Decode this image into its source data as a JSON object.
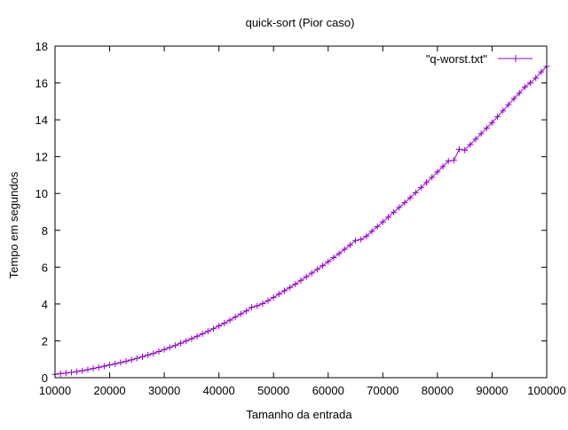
{
  "chart_data": {
    "type": "line",
    "title": "quick-sort (Pior caso)",
    "xlabel": "Tamanho da entrada",
    "ylabel": "Tempo em segundos",
    "xlim": [
      10000,
      100000
    ],
    "ylim": [
      0,
      18
    ],
    "xticks": [
      10000,
      20000,
      30000,
      40000,
      50000,
      60000,
      70000,
      80000,
      90000,
      100000
    ],
    "yticks": [
      0,
      2,
      4,
      6,
      8,
      10,
      12,
      14,
      16,
      18
    ],
    "grid": false,
    "legend_position": "top-right",
    "series": [
      {
        "name": "\"q-worst.txt\"",
        "color": "#9400d3",
        "marker": "plus",
        "x": [
          10000,
          11000,
          12000,
          13000,
          14000,
          15000,
          16000,
          17000,
          18000,
          19000,
          20000,
          21000,
          22000,
          23000,
          24000,
          25000,
          26000,
          27000,
          28000,
          29000,
          30000,
          31000,
          32000,
          33000,
          34000,
          35000,
          36000,
          37000,
          38000,
          39000,
          40000,
          41000,
          42000,
          43000,
          44000,
          45000,
          46000,
          47000,
          48000,
          49000,
          50000,
          51000,
          52000,
          53000,
          54000,
          55000,
          56000,
          57000,
          58000,
          59000,
          60000,
          61000,
          62000,
          63000,
          64000,
          65000,
          66000,
          67000,
          68000,
          69000,
          70000,
          71000,
          72000,
          73000,
          74000,
          75000,
          76000,
          77000,
          78000,
          79000,
          80000,
          81000,
          82000,
          83000,
          84000,
          85000,
          86000,
          87000,
          88000,
          89000,
          90000,
          91000,
          92000,
          93000,
          94000,
          95000,
          96000,
          97000,
          98000,
          99000,
          100000
        ],
        "y": [
          0.18,
          0.22,
          0.25,
          0.29,
          0.33,
          0.38,
          0.44,
          0.5,
          0.56,
          0.62,
          0.69,
          0.75,
          0.82,
          0.89,
          0.97,
          1.05,
          1.14,
          1.23,
          1.32,
          1.42,
          1.53,
          1.64,
          1.75,
          1.87,
          1.99,
          2.12,
          2.25,
          2.38,
          2.52,
          2.66,
          2.81,
          2.96,
          3.12,
          3.29,
          3.46,
          3.62,
          3.82,
          3.9,
          4.02,
          4.18,
          4.36,
          4.54,
          4.72,
          4.9,
          5.08,
          5.28,
          5.48,
          5.68,
          5.88,
          6.08,
          6.3,
          6.52,
          6.74,
          6.97,
          7.2,
          7.45,
          7.5,
          7.68,
          7.95,
          8.2,
          8.46,
          8.72,
          8.98,
          9.24,
          9.5,
          9.77,
          10.04,
          10.32,
          10.6,
          10.88,
          11.17,
          11.46,
          11.76,
          11.8,
          12.4,
          12.35,
          12.65,
          12.95,
          13.25,
          13.55,
          13.85,
          14.17,
          14.49,
          14.82,
          15.15,
          15.45,
          15.78,
          16.0,
          16.27,
          16.6,
          16.9
        ]
      }
    ]
  }
}
